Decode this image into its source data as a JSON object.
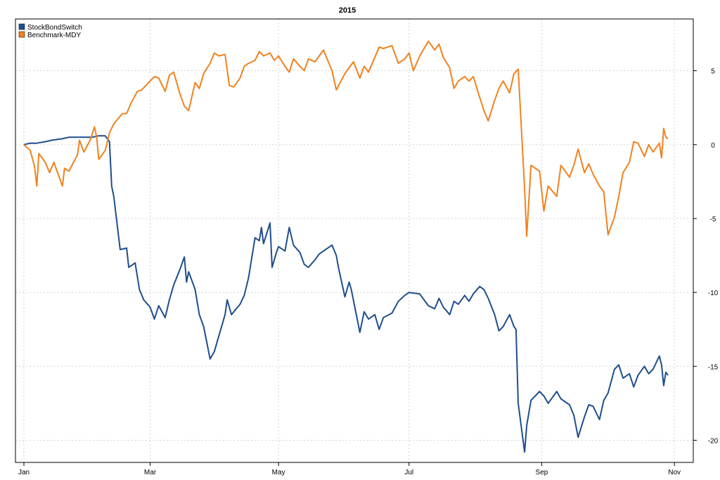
{
  "chart_data": {
    "type": "line",
    "title": "2015",
    "xlabel": "",
    "ylabel": "",
    "grid": true,
    "legend_position": "top-left",
    "x_domain": [
      "2015-01-02",
      "2015-10-30"
    ],
    "ylim": [
      -21.5,
      8.5
    ],
    "x_ticks": [
      {
        "date": "2015-01-02",
        "label": "Jan"
      },
      {
        "date": "2015-03-02",
        "label": "Mar"
      },
      {
        "date": "2015-05-01",
        "label": "May"
      },
      {
        "date": "2015-07-01",
        "label": "Jul"
      },
      {
        "date": "2015-09-01",
        "label": "Sep"
      },
      {
        "date": "2015-11-02",
        "label": "Nov"
      }
    ],
    "y_ticks": [
      {
        "value": 5,
        "label": "5"
      },
      {
        "value": 0,
        "label": "0"
      },
      {
        "value": -5,
        "label": "-5"
      },
      {
        "value": -10,
        "label": "-10"
      },
      {
        "value": -15,
        "label": "-15"
      },
      {
        "value": -20,
        "label": "-20"
      }
    ],
    "series": [
      {
        "name": "StockBondSwitch",
        "color": "#1f4e8c",
        "points": [
          [
            "2015-01-02",
            0.0
          ],
          [
            "2015-01-05",
            0.1
          ],
          [
            "2015-01-08",
            0.1
          ],
          [
            "2015-01-12",
            0.2
          ],
          [
            "2015-01-15",
            0.3
          ],
          [
            "2015-01-20",
            0.4
          ],
          [
            "2015-01-23",
            0.5
          ],
          [
            "2015-01-27",
            0.5
          ],
          [
            "2015-01-30",
            0.5
          ],
          [
            "2015-02-03",
            0.5
          ],
          [
            "2015-02-06",
            0.6
          ],
          [
            "2015-02-09",
            0.6
          ],
          [
            "2015-02-11",
            0.2
          ],
          [
            "2015-02-12",
            -2.8
          ],
          [
            "2015-02-13",
            -3.5
          ],
          [
            "2015-02-16",
            -7.1
          ],
          [
            "2015-02-19",
            -7.0
          ],
          [
            "2015-02-20",
            -8.3
          ],
          [
            "2015-02-23",
            -8.0
          ],
          [
            "2015-02-25",
            -9.8
          ],
          [
            "2015-02-27",
            -10.5
          ],
          [
            "2015-03-02",
            -11.0
          ],
          [
            "2015-03-04",
            -11.8
          ],
          [
            "2015-03-06",
            -10.9
          ],
          [
            "2015-03-09",
            -11.7
          ],
          [
            "2015-03-11",
            -10.5
          ],
          [
            "2015-03-13",
            -9.5
          ],
          [
            "2015-03-16",
            -8.4
          ],
          [
            "2015-03-18",
            -7.6
          ],
          [
            "2015-03-19",
            -9.3
          ],
          [
            "2015-03-20",
            -8.6
          ],
          [
            "2015-03-23",
            -9.8
          ],
          [
            "2015-03-25",
            -11.5
          ],
          [
            "2015-03-27",
            -12.3
          ],
          [
            "2015-03-30",
            -14.5
          ],
          [
            "2015-04-01",
            -14.0
          ],
          [
            "2015-04-03",
            -13.0
          ],
          [
            "2015-04-06",
            -11.5
          ],
          [
            "2015-04-07",
            -10.5
          ],
          [
            "2015-04-09",
            -11.5
          ],
          [
            "2015-04-13",
            -10.8
          ],
          [
            "2015-04-15",
            -10.2
          ],
          [
            "2015-04-17",
            -9.0
          ],
          [
            "2015-04-20",
            -6.3
          ],
          [
            "2015-04-22",
            -6.5
          ],
          [
            "2015-04-23",
            -5.6
          ],
          [
            "2015-04-24",
            -6.7
          ],
          [
            "2015-04-27",
            -5.3
          ],
          [
            "2015-04-28",
            -8.3
          ],
          [
            "2015-04-30",
            -7.3
          ],
          [
            "2015-05-01",
            -6.9
          ],
          [
            "2015-05-04",
            -7.2
          ],
          [
            "2015-05-06",
            -5.6
          ],
          [
            "2015-05-08",
            -6.8
          ],
          [
            "2015-05-11",
            -7.3
          ],
          [
            "2015-05-13",
            -8.1
          ],
          [
            "2015-05-15",
            -8.3
          ],
          [
            "2015-05-18",
            -7.8
          ],
          [
            "2015-05-20",
            -7.4
          ],
          [
            "2015-05-22",
            -7.2
          ],
          [
            "2015-05-26",
            -6.8
          ],
          [
            "2015-05-28",
            -7.5
          ],
          [
            "2015-05-29",
            -8.3
          ],
          [
            "2015-06-01",
            -10.3
          ],
          [
            "2015-06-03",
            -9.3
          ],
          [
            "2015-06-04",
            -9.8
          ],
          [
            "2015-06-08",
            -12.7
          ],
          [
            "2015-06-10",
            -11.3
          ],
          [
            "2015-06-12",
            -11.8
          ],
          [
            "2015-06-15",
            -11.5
          ],
          [
            "2015-06-17",
            -12.5
          ],
          [
            "2015-06-19",
            -11.7
          ],
          [
            "2015-06-23",
            -11.4
          ],
          [
            "2015-06-26",
            -10.6
          ],
          [
            "2015-06-29",
            -10.2
          ],
          [
            "2015-07-01",
            -10.0
          ],
          [
            "2015-07-06",
            -10.1
          ],
          [
            "2015-07-08",
            -10.5
          ],
          [
            "2015-07-10",
            -10.9
          ],
          [
            "2015-07-13",
            -11.1
          ],
          [
            "2015-07-15",
            -10.4
          ],
          [
            "2015-07-17",
            -11.0
          ],
          [
            "2015-07-20",
            -11.5
          ],
          [
            "2015-07-22",
            -10.6
          ],
          [
            "2015-07-24",
            -10.8
          ],
          [
            "2015-07-27",
            -10.2
          ],
          [
            "2015-07-29",
            -10.6
          ],
          [
            "2015-07-31",
            -10.1
          ],
          [
            "2015-08-03",
            -9.6
          ],
          [
            "2015-08-05",
            -9.8
          ],
          [
            "2015-08-07",
            -10.4
          ],
          [
            "2015-08-10",
            -11.5
          ],
          [
            "2015-08-12",
            -12.6
          ],
          [
            "2015-08-14",
            -12.3
          ],
          [
            "2015-08-17",
            -11.5
          ],
          [
            "2015-08-19",
            -12.3
          ],
          [
            "2015-08-20",
            -12.5
          ],
          [
            "2015-08-21",
            -17.5
          ],
          [
            "2015-08-24",
            -20.8
          ],
          [
            "2015-08-25",
            -19.0
          ],
          [
            "2015-08-27",
            -17.3
          ],
          [
            "2015-08-31",
            -16.7
          ],
          [
            "2015-09-02",
            -17.0
          ],
          [
            "2015-09-04",
            -17.5
          ],
          [
            "2015-09-08",
            -16.7
          ],
          [
            "2015-09-10",
            -17.2
          ],
          [
            "2015-09-14",
            -17.6
          ],
          [
            "2015-09-16",
            -18.3
          ],
          [
            "2015-09-18",
            -19.8
          ],
          [
            "2015-09-21",
            -18.4
          ],
          [
            "2015-09-23",
            -17.6
          ],
          [
            "2015-09-25",
            -17.7
          ],
          [
            "2015-09-28",
            -18.6
          ],
          [
            "2015-09-30",
            -17.3
          ],
          [
            "2015-10-02",
            -16.8
          ],
          [
            "2015-10-05",
            -15.2
          ],
          [
            "2015-10-07",
            -14.9
          ],
          [
            "2015-10-09",
            -15.8
          ],
          [
            "2015-10-12",
            -15.5
          ],
          [
            "2015-10-14",
            -16.4
          ],
          [
            "2015-10-16",
            -15.6
          ],
          [
            "2015-10-19",
            -15.0
          ],
          [
            "2015-10-21",
            -15.5
          ],
          [
            "2015-10-23",
            -15.2
          ],
          [
            "2015-10-26",
            -14.3
          ],
          [
            "2015-10-27",
            -14.9
          ],
          [
            "2015-10-28",
            -16.3
          ],
          [
            "2015-10-29",
            -15.4
          ],
          [
            "2015-10-30",
            -15.6
          ]
        ]
      },
      {
        "name": "Benchmark-MDY",
        "color": "#f0821e",
        "points": [
          [
            "2015-01-02",
            0.0
          ],
          [
            "2015-01-05",
            -0.4
          ],
          [
            "2015-01-07",
            -1.5
          ],
          [
            "2015-01-08",
            -2.8
          ],
          [
            "2015-01-09",
            -0.6
          ],
          [
            "2015-01-12",
            -1.2
          ],
          [
            "2015-01-14",
            -1.9
          ],
          [
            "2015-01-16",
            -1.2
          ],
          [
            "2015-01-20",
            -2.8
          ],
          [
            "2015-01-21",
            -1.6
          ],
          [
            "2015-01-23",
            -1.8
          ],
          [
            "2015-01-27",
            -0.7
          ],
          [
            "2015-01-28",
            0.3
          ],
          [
            "2015-01-30",
            -0.5
          ],
          [
            "2015-02-02",
            0.3
          ],
          [
            "2015-02-04",
            1.2
          ],
          [
            "2015-02-05",
            0.5
          ],
          [
            "2015-02-06",
            -1.0
          ],
          [
            "2015-02-09",
            -0.4
          ],
          [
            "2015-02-11",
            0.8
          ],
          [
            "2015-02-13",
            1.4
          ],
          [
            "2015-02-17",
            2.1
          ],
          [
            "2015-02-19",
            2.1
          ],
          [
            "2015-02-21",
            2.8
          ],
          [
            "2015-02-24",
            3.6
          ],
          [
            "2015-02-26",
            3.7
          ],
          [
            "2015-03-02",
            4.3
          ],
          [
            "2015-03-04",
            4.6
          ],
          [
            "2015-03-06",
            4.5
          ],
          [
            "2015-03-09",
            3.6
          ],
          [
            "2015-03-11",
            4.7
          ],
          [
            "2015-03-13",
            4.9
          ],
          [
            "2015-03-16",
            3.4
          ],
          [
            "2015-03-18",
            2.6
          ],
          [
            "2015-03-20",
            2.3
          ],
          [
            "2015-03-23",
            4.2
          ],
          [
            "2015-03-25",
            3.8
          ],
          [
            "2015-03-27",
            4.8
          ],
          [
            "2015-03-30",
            5.5
          ],
          [
            "2015-04-01",
            6.2
          ],
          [
            "2015-04-03",
            6.0
          ],
          [
            "2015-04-06",
            6.1
          ],
          [
            "2015-04-08",
            4.0
          ],
          [
            "2015-04-10",
            3.9
          ],
          [
            "2015-04-13",
            4.5
          ],
          [
            "2015-04-15",
            5.3
          ],
          [
            "2015-04-17",
            5.5
          ],
          [
            "2015-04-20",
            5.7
          ],
          [
            "2015-04-22",
            6.3
          ],
          [
            "2015-04-24",
            6.0
          ],
          [
            "2015-04-27",
            6.2
          ],
          [
            "2015-04-29",
            5.7
          ],
          [
            "2015-05-01",
            6.0
          ],
          [
            "2015-05-04",
            5.3
          ],
          [
            "2015-05-06",
            4.9
          ],
          [
            "2015-05-08",
            5.8
          ],
          [
            "2015-05-11",
            5.3
          ],
          [
            "2015-05-13",
            5.0
          ],
          [
            "2015-05-15",
            5.8
          ],
          [
            "2015-05-18",
            5.6
          ],
          [
            "2015-05-20",
            6.0
          ],
          [
            "2015-05-22",
            6.4
          ],
          [
            "2015-05-26",
            5.0
          ],
          [
            "2015-05-28",
            3.7
          ],
          [
            "2015-06-01",
            4.8
          ],
          [
            "2015-06-03",
            5.2
          ],
          [
            "2015-06-05",
            5.6
          ],
          [
            "2015-06-08",
            4.5
          ],
          [
            "2015-06-10",
            5.3
          ],
          [
            "2015-06-12",
            4.9
          ],
          [
            "2015-06-15",
            5.9
          ],
          [
            "2015-06-17",
            6.6
          ],
          [
            "2015-06-19",
            6.5
          ],
          [
            "2015-06-23",
            6.7
          ],
          [
            "2015-06-26",
            5.5
          ],
          [
            "2015-06-29",
            5.8
          ],
          [
            "2015-07-01",
            6.2
          ],
          [
            "2015-07-03",
            5.0
          ],
          [
            "2015-07-06",
            6.0
          ],
          [
            "2015-07-08",
            6.5
          ],
          [
            "2015-07-10",
            7.0
          ],
          [
            "2015-07-13",
            6.4
          ],
          [
            "2015-07-15",
            6.8
          ],
          [
            "2015-07-17",
            5.9
          ],
          [
            "2015-07-20",
            5.2
          ],
          [
            "2015-07-22",
            3.8
          ],
          [
            "2015-07-24",
            4.3
          ],
          [
            "2015-07-27",
            4.6
          ],
          [
            "2015-07-29",
            4.3
          ],
          [
            "2015-07-31",
            4.6
          ],
          [
            "2015-08-03",
            3.2
          ],
          [
            "2015-08-05",
            2.3
          ],
          [
            "2015-08-07",
            1.6
          ],
          [
            "2015-08-10",
            3.0
          ],
          [
            "2015-08-12",
            3.8
          ],
          [
            "2015-08-14",
            4.3
          ],
          [
            "2015-08-17",
            3.5
          ],
          [
            "2015-08-19",
            4.8
          ],
          [
            "2015-08-21",
            5.1
          ],
          [
            "2015-08-24",
            -3.0
          ],
          [
            "2015-08-25",
            -6.2
          ],
          [
            "2015-08-27",
            -1.4
          ],
          [
            "2015-08-31",
            -1.8
          ],
          [
            "2015-09-02",
            -4.5
          ],
          [
            "2015-09-04",
            -2.8
          ],
          [
            "2015-09-08",
            -3.5
          ],
          [
            "2015-09-10",
            -1.4
          ],
          [
            "2015-09-14",
            -2.2
          ],
          [
            "2015-09-16",
            -1.4
          ],
          [
            "2015-09-18",
            -0.3
          ],
          [
            "2015-09-21",
            -1.9
          ],
          [
            "2015-09-23",
            -1.3
          ],
          [
            "2015-09-25",
            -2.0
          ],
          [
            "2015-09-28",
            -2.8
          ],
          [
            "2015-09-30",
            -3.2
          ],
          [
            "2015-10-02",
            -6.1
          ],
          [
            "2015-10-05",
            -4.9
          ],
          [
            "2015-10-07",
            -3.5
          ],
          [
            "2015-10-09",
            -1.9
          ],
          [
            "2015-10-12",
            -1.2
          ],
          [
            "2015-10-14",
            0.2
          ],
          [
            "2015-10-16",
            0.1
          ],
          [
            "2015-10-19",
            -0.8
          ],
          [
            "2015-10-21",
            0.0
          ],
          [
            "2015-10-23",
            -0.5
          ],
          [
            "2015-10-26",
            0.1
          ],
          [
            "2015-10-27",
            -0.9
          ],
          [
            "2015-10-28",
            1.1
          ],
          [
            "2015-10-29",
            0.5
          ],
          [
            "2015-10-30",
            0.4
          ]
        ]
      }
    ]
  }
}
